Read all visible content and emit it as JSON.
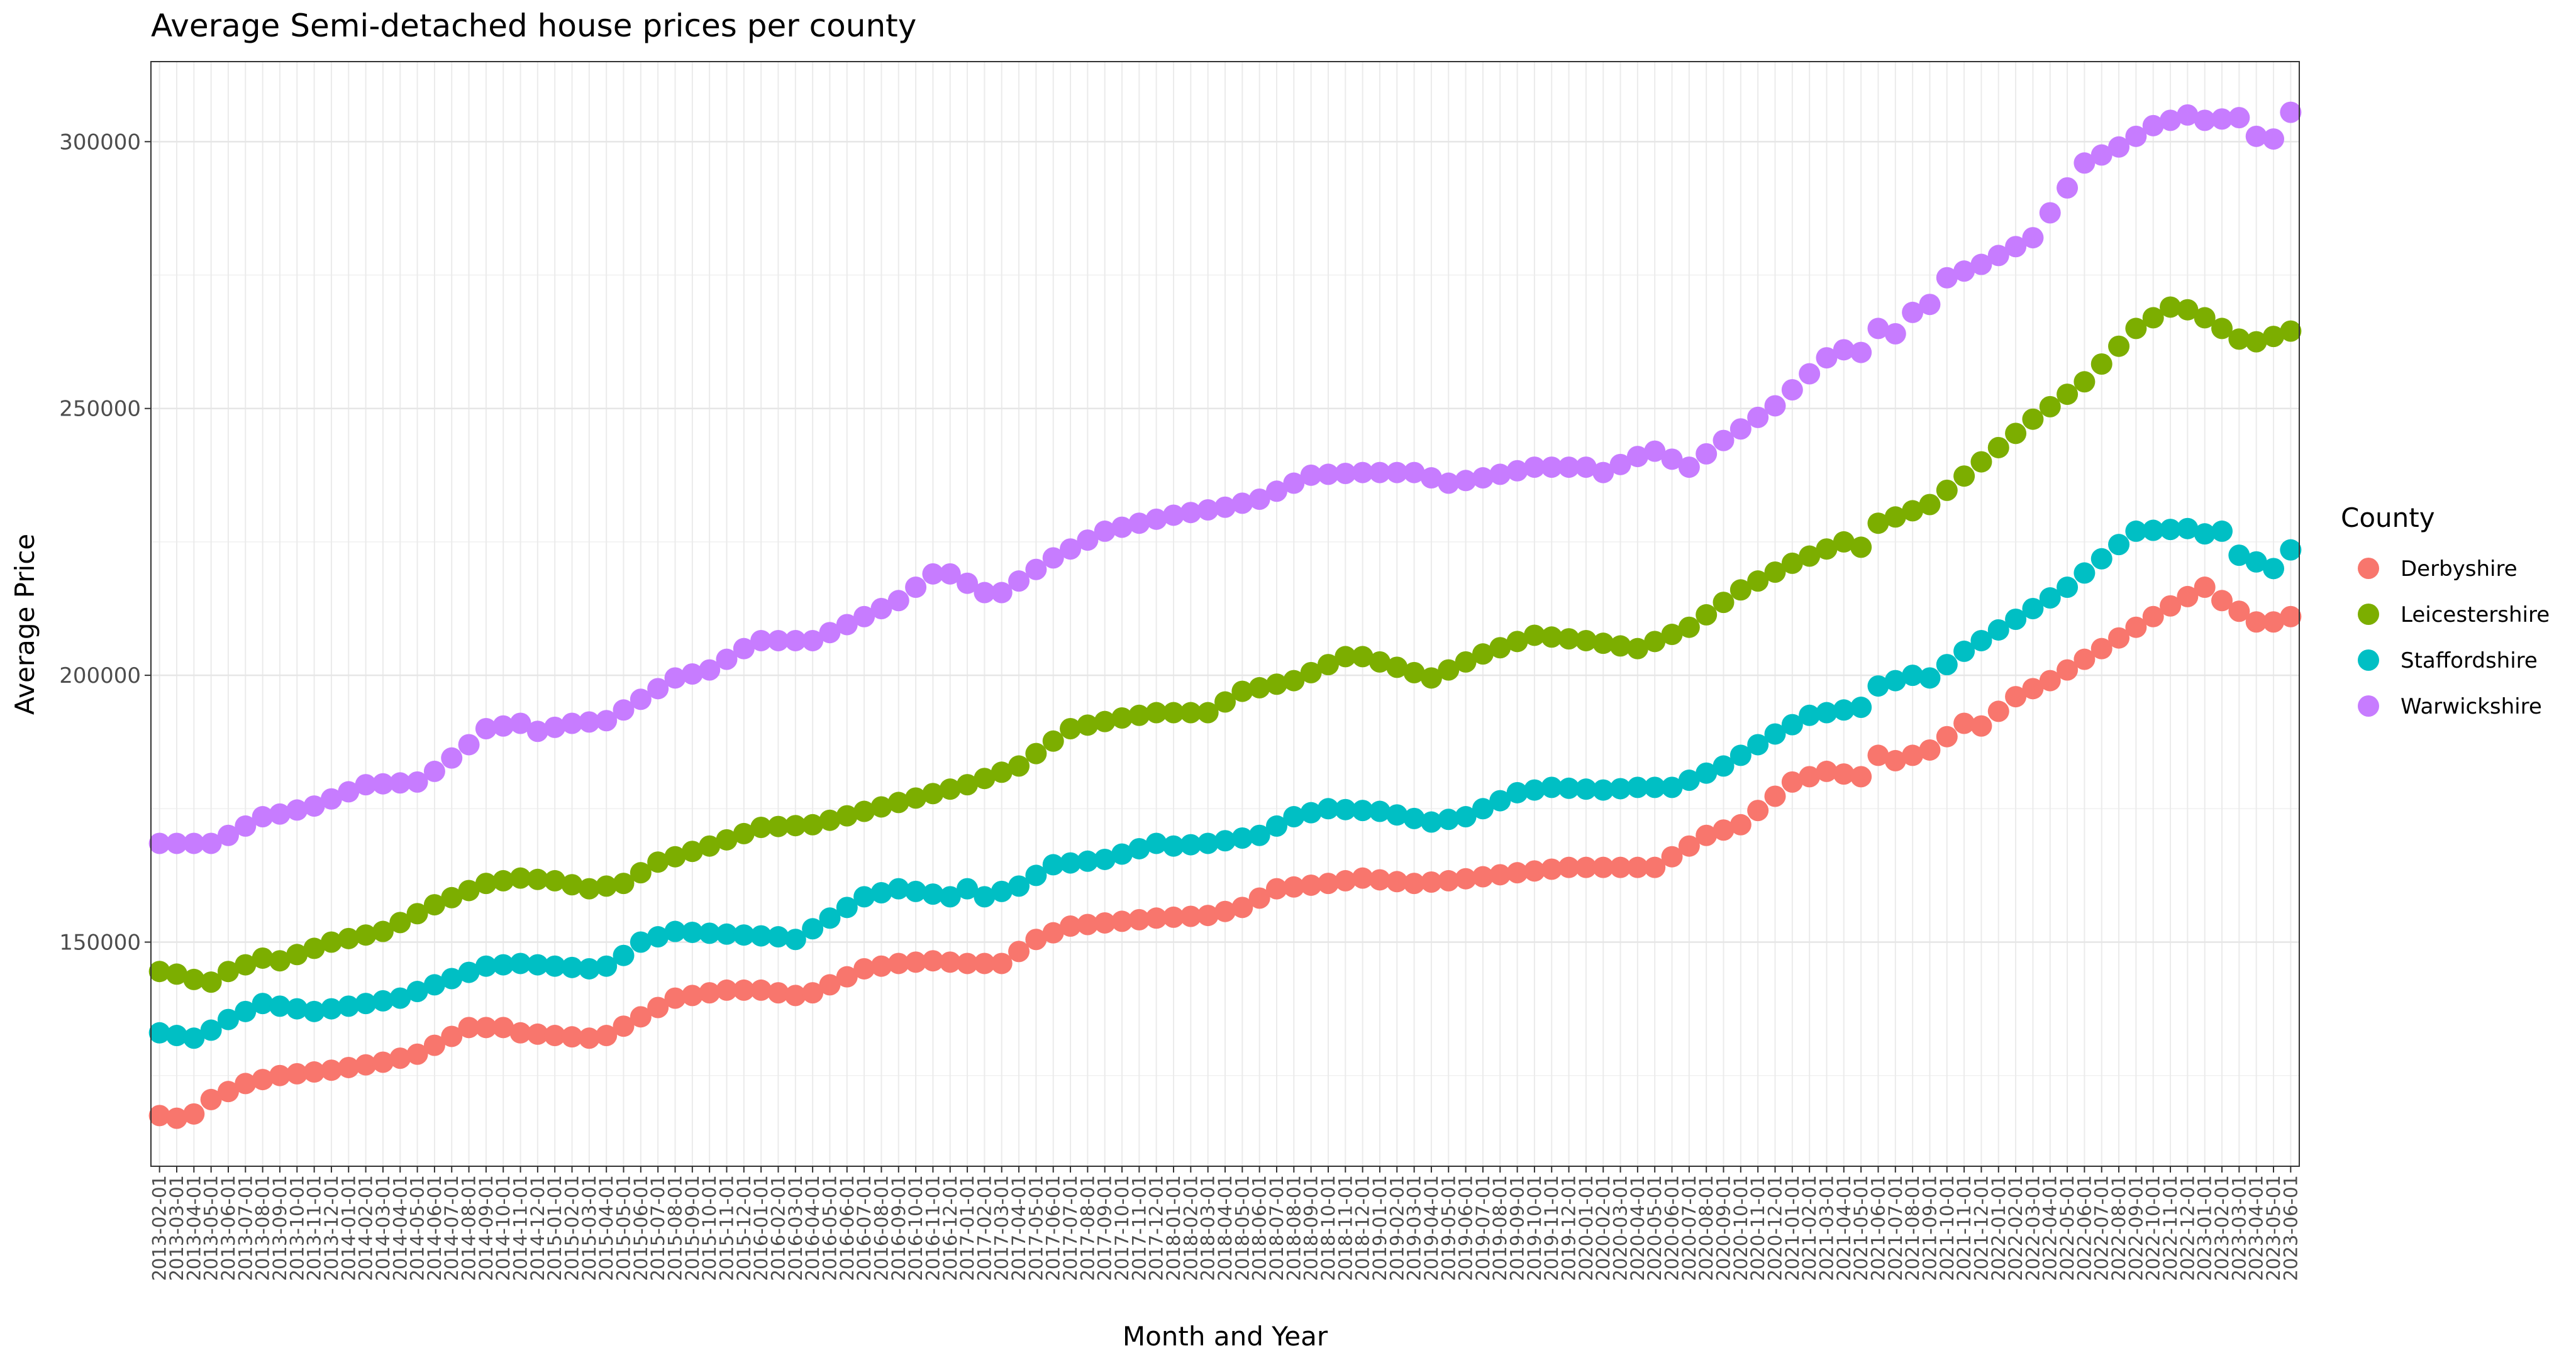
{
  "chart_data": {
    "type": "scatter",
    "title": "Average Semi-detached house prices per county",
    "xlabel": "Month and Year",
    "ylabel": "Average Price",
    "x_start": "2013-02-01",
    "x_end": "2023-06-01",
    "x_tick_format": "YYYY-MM-01",
    "ylim": [
      108000,
      315000
    ],
    "yticks": [
      150000,
      200000,
      250000,
      300000
    ],
    "grid": true,
    "legend": {
      "title": "County",
      "position": "right"
    },
    "series": [
      {
        "name": "Derbyshire",
        "color": "#F8766D",
        "anchors": [
          [
            "2013-02-01",
            117500
          ],
          [
            "2013-03-01",
            117000
          ],
          [
            "2013-04-01",
            117800
          ],
          [
            "2013-05-01",
            120500
          ],
          [
            "2013-07-01",
            123500
          ],
          [
            "2013-09-01",
            125000
          ],
          [
            "2013-12-01",
            126000
          ],
          [
            "2014-03-01",
            127500
          ],
          [
            "2014-05-01",
            129000
          ],
          [
            "2014-08-01",
            134000
          ],
          [
            "2014-10-01",
            134000
          ],
          [
            "2014-11-01",
            133000
          ],
          [
            "2015-01-01",
            132500
          ],
          [
            "2015-03-01",
            132000
          ],
          [
            "2015-04-01",
            132500
          ],
          [
            "2015-06-01",
            136000
          ],
          [
            "2015-08-01",
            139500
          ],
          [
            "2015-11-01",
            141000
          ],
          [
            "2016-01-01",
            141000
          ],
          [
            "2016-03-01",
            140000
          ],
          [
            "2016-04-01",
            140500
          ],
          [
            "2016-07-01",
            145000
          ],
          [
            "2016-09-01",
            146000
          ],
          [
            "2016-11-01",
            146500
          ],
          [
            "2017-01-01",
            146000
          ],
          [
            "2017-03-01",
            146000
          ],
          [
            "2017-05-01",
            150500
          ],
          [
            "2017-07-01",
            153000
          ],
          [
            "2017-12-01",
            154500
          ],
          [
            "2018-03-01",
            155000
          ],
          [
            "2018-05-01",
            156500
          ],
          [
            "2018-07-01",
            160000
          ],
          [
            "2018-10-01",
            161000
          ],
          [
            "2018-12-01",
            162000
          ],
          [
            "2019-03-01",
            161000
          ],
          [
            "2019-05-01",
            161500
          ],
          [
            "2019-09-01",
            163000
          ],
          [
            "2019-12-01",
            164000
          ],
          [
            "2020-03-01",
            164000
          ],
          [
            "2020-05-01",
            164000
          ],
          [
            "2020-08-01",
            170000
          ],
          [
            "2020-10-01",
            172000
          ],
          [
            "2021-01-01",
            180000
          ],
          [
            "2021-03-01",
            182000
          ],
          [
            "2021-05-01",
            181000
          ],
          [
            "2021-06-01",
            185000
          ],
          [
            "2021-07-01",
            184000
          ],
          [
            "2021-09-01",
            186000
          ],
          [
            "2021-11-01",
            191000
          ],
          [
            "2021-12-01",
            190500
          ],
          [
            "2022-02-01",
            196000
          ],
          [
            "2022-04-01",
            199000
          ],
          [
            "2022-06-01",
            203000
          ],
          [
            "2022-09-01",
            209000
          ],
          [
            "2022-11-01",
            213000
          ],
          [
            "2023-01-01",
            216500
          ],
          [
            "2023-02-01",
            214000
          ],
          [
            "2023-04-01",
            210000
          ],
          [
            "2023-05-01",
            210000
          ],
          [
            "2023-06-01",
            211000
          ]
        ]
      },
      {
        "name": "Leicestershire",
        "color": "#7CAE00",
        "anchors": [
          [
            "2013-02-01",
            144500
          ],
          [
            "2013-03-01",
            144000
          ],
          [
            "2013-04-01",
            143000
          ],
          [
            "2013-05-01",
            142500
          ],
          [
            "2013-06-01",
            144500
          ],
          [
            "2013-08-01",
            147000
          ],
          [
            "2013-09-01",
            146500
          ],
          [
            "2013-12-01",
            150000
          ],
          [
            "2014-03-01",
            152000
          ],
          [
            "2014-06-01",
            157000
          ],
          [
            "2014-09-01",
            161000
          ],
          [
            "2014-11-01",
            162000
          ],
          [
            "2015-01-01",
            161500
          ],
          [
            "2015-03-01",
            160000
          ],
          [
            "2015-05-01",
            161000
          ],
          [
            "2015-07-01",
            165000
          ],
          [
            "2015-10-01",
            168000
          ],
          [
            "2016-01-01",
            171500
          ],
          [
            "2016-04-01",
            172000
          ],
          [
            "2016-07-01",
            174500
          ],
          [
            "2016-10-01",
            177000
          ],
          [
            "2017-01-01",
            179500
          ],
          [
            "2017-04-01",
            183000
          ],
          [
            "2017-07-01",
            190000
          ],
          [
            "2017-10-01",
            192000
          ],
          [
            "2017-12-01",
            193000
          ],
          [
            "2018-03-01",
            193000
          ],
          [
            "2018-05-01",
            197000
          ],
          [
            "2018-08-01",
            199000
          ],
          [
            "2018-11-01",
            203500
          ],
          [
            "2018-12-01",
            203500
          ],
          [
            "2019-03-01",
            200500
          ],
          [
            "2019-04-01",
            199500
          ],
          [
            "2019-07-01",
            204000
          ],
          [
            "2019-10-01",
            207500
          ],
          [
            "2020-01-01",
            206500
          ],
          [
            "2020-04-01",
            205000
          ],
          [
            "2020-07-01",
            209000
          ],
          [
            "2020-10-01",
            216000
          ],
          [
            "2021-01-01",
            221000
          ],
          [
            "2021-04-01",
            225000
          ],
          [
            "2021-05-01",
            224000
          ],
          [
            "2021-06-01",
            228500
          ],
          [
            "2021-09-01",
            232000
          ],
          [
            "2021-12-01",
            240000
          ],
          [
            "2022-03-01",
            248000
          ],
          [
            "2022-06-01",
            255000
          ],
          [
            "2022-09-01",
            265000
          ],
          [
            "2022-11-01",
            269000
          ],
          [
            "2022-12-01",
            268500
          ],
          [
            "2023-01-01",
            267000
          ],
          [
            "2023-03-01",
            263000
          ],
          [
            "2023-04-01",
            262500
          ],
          [
            "2023-06-01",
            264500
          ]
        ]
      },
      {
        "name": "Staffordshire",
        "color": "#00BFC4",
        "anchors": [
          [
            "2013-02-01",
            133000
          ],
          [
            "2013-03-01",
            132500
          ],
          [
            "2013-04-01",
            132000
          ],
          [
            "2013-05-01",
            133500
          ],
          [
            "2013-06-01",
            135500
          ],
          [
            "2013-08-01",
            138500
          ],
          [
            "2013-11-01",
            137000
          ],
          [
            "2014-02-01",
            138500
          ],
          [
            "2014-04-01",
            139500
          ],
          [
            "2014-06-01",
            142000
          ],
          [
            "2014-09-01",
            145500
          ],
          [
            "2014-11-01",
            146000
          ],
          [
            "2015-01-01",
            145500
          ],
          [
            "2015-03-01",
            145000
          ],
          [
            "2015-04-01",
            145500
          ],
          [
            "2015-05-01",
            147500
          ],
          [
            "2015-06-01",
            150000
          ],
          [
            "2015-08-01",
            152000
          ],
          [
            "2015-11-01",
            151500
          ],
          [
            "2016-02-01",
            151000
          ],
          [
            "2016-03-01",
            150500
          ],
          [
            "2016-05-01",
            154500
          ],
          [
            "2016-07-01",
            158500
          ],
          [
            "2016-09-01",
            160000
          ],
          [
            "2016-12-01",
            158500
          ],
          [
            "2017-01-01",
            160000
          ],
          [
            "2017-02-01",
            158500
          ],
          [
            "2017-04-01",
            160500
          ],
          [
            "2017-06-01",
            164500
          ],
          [
            "2017-09-01",
            165500
          ],
          [
            "2017-12-01",
            168500
          ],
          [
            "2018-01-01",
            168000
          ],
          [
            "2018-03-01",
            168500
          ],
          [
            "2018-06-01",
            170000
          ],
          [
            "2018-08-01",
            173500
          ],
          [
            "2018-10-01",
            175000
          ],
          [
            "2019-01-01",
            174500
          ],
          [
            "2019-04-01",
            172500
          ],
          [
            "2019-06-01",
            173500
          ],
          [
            "2019-09-01",
            178000
          ],
          [
            "2019-11-01",
            179000
          ],
          [
            "2020-02-01",
            178500
          ],
          [
            "2020-04-01",
            179000
          ],
          [
            "2020-06-01",
            179000
          ],
          [
            "2020-09-01",
            183000
          ],
          [
            "2020-12-01",
            189000
          ],
          [
            "2021-02-01",
            192500
          ],
          [
            "2021-04-01",
            193500
          ],
          [
            "2021-05-01",
            194000
          ],
          [
            "2021-06-01",
            198000
          ],
          [
            "2021-08-01",
            200000
          ],
          [
            "2021-09-01",
            199500
          ],
          [
            "2021-11-01",
            204500
          ],
          [
            "2022-02-01",
            210500
          ],
          [
            "2022-05-01",
            216500
          ],
          [
            "2022-08-01",
            224500
          ],
          [
            "2022-09-01",
            227000
          ],
          [
            "2022-12-01",
            227500
          ],
          [
            "2023-01-01",
            226500
          ],
          [
            "2023-02-01",
            227000
          ],
          [
            "2023-03-01",
            222500
          ],
          [
            "2023-05-01",
            220000
          ],
          [
            "2023-06-01",
            223500
          ]
        ]
      },
      {
        "name": "Warwickshire",
        "color": "#C77CFF",
        "anchors": [
          [
            "2013-02-01",
            168500
          ],
          [
            "2013-03-01",
            168500
          ],
          [
            "2013-05-01",
            168500
          ],
          [
            "2013-06-01",
            170000
          ],
          [
            "2013-08-01",
            173500
          ],
          [
            "2013-09-01",
            174000
          ],
          [
            "2013-11-01",
            175500
          ],
          [
            "2014-02-01",
            179500
          ],
          [
            "2014-05-01",
            180000
          ],
          [
            "2014-06-01",
            182000
          ],
          [
            "2014-08-01",
            187000
          ],
          [
            "2014-09-01",
            190000
          ],
          [
            "2014-11-01",
            191000
          ],
          [
            "2014-12-01",
            189500
          ],
          [
            "2015-02-01",
            191000
          ],
          [
            "2015-04-01",
            191500
          ],
          [
            "2015-05-01",
            193500
          ],
          [
            "2015-08-01",
            199500
          ],
          [
            "2015-10-01",
            201000
          ],
          [
            "2015-12-01",
            205000
          ],
          [
            "2016-01-01",
            206500
          ],
          [
            "2016-04-01",
            206500
          ],
          [
            "2016-06-01",
            209500
          ],
          [
            "2016-09-01",
            214000
          ],
          [
            "2016-11-01",
            219000
          ],
          [
            "2016-12-01",
            219000
          ],
          [
            "2017-02-01",
            215500
          ],
          [
            "2017-03-01",
            215500
          ],
          [
            "2017-06-01",
            222000
          ],
          [
            "2017-09-01",
            227000
          ],
          [
            "2018-01-01",
            230000
          ],
          [
            "2018-04-01",
            231500
          ],
          [
            "2018-06-01",
            233000
          ],
          [
            "2018-09-01",
            237500
          ],
          [
            "2018-12-01",
            238000
          ],
          [
            "2019-03-01",
            238000
          ],
          [
            "2019-05-01",
            236000
          ],
          [
            "2019-07-01",
            237000
          ],
          [
            "2019-10-01",
            239000
          ],
          [
            "2020-01-01",
            239000
          ],
          [
            "2020-02-01",
            238000
          ],
          [
            "2020-04-01",
            241000
          ],
          [
            "2020-05-01",
            242000
          ],
          [
            "2020-07-01",
            239000
          ],
          [
            "2020-09-01",
            244000
          ],
          [
            "2020-12-01",
            250500
          ],
          [
            "2021-03-01",
            259500
          ],
          [
            "2021-04-01",
            261000
          ],
          [
            "2021-05-01",
            260500
          ],
          [
            "2021-06-01",
            265000
          ],
          [
            "2021-07-01",
            264000
          ],
          [
            "2021-08-01",
            268000
          ],
          [
            "2021-09-01",
            269500
          ],
          [
            "2021-10-01",
            274500
          ],
          [
            "2021-12-01",
            277000
          ],
          [
            "2022-03-01",
            282000
          ],
          [
            "2022-06-01",
            296000
          ],
          [
            "2022-08-01",
            299000
          ],
          [
            "2022-10-01",
            303000
          ],
          [
            "2022-12-01",
            305000
          ],
          [
            "2023-01-01",
            304000
          ],
          [
            "2023-03-01",
            304500
          ],
          [
            "2023-04-01",
            301000
          ],
          [
            "2023-05-01",
            300500
          ],
          [
            "2023-06-01",
            305500
          ]
        ]
      }
    ]
  }
}
